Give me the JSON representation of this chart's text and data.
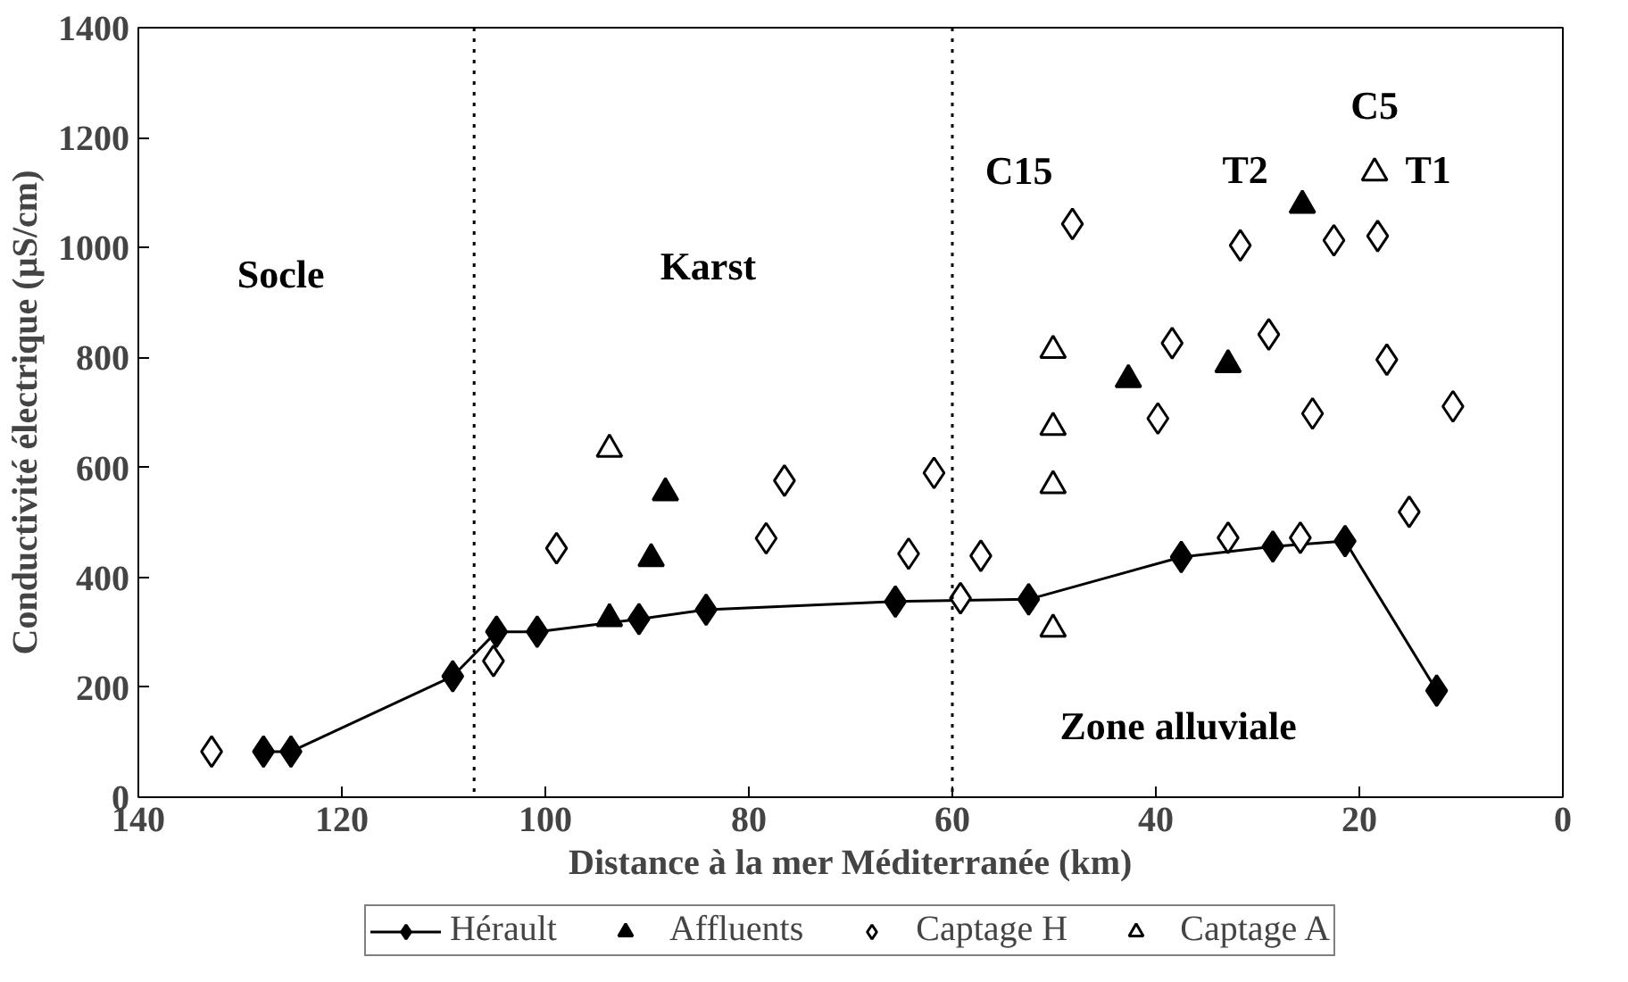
{
  "chart_data": {
    "type": "scatter",
    "xlabel": "Distance à la mer Méditerranée (km)",
    "ylabel": "Conductivité électrique (µS/cm)",
    "xlim": [
      140,
      0
    ],
    "xticks": [
      140,
      120,
      100,
      80,
      60,
      40,
      20,
      0
    ],
    "ylim": [
      0,
      1400
    ],
    "yticks": [
      0,
      200,
      400,
      600,
      800,
      1000,
      1200,
      1400
    ],
    "grid": false,
    "legend": "bottom",
    "ref_lines": [
      {
        "axis": "x",
        "value": 107,
        "line_style": "dotted",
        "color": "#000000"
      },
      {
        "axis": "x",
        "value": 60,
        "line_style": "dotted",
        "color": "#000000"
      }
    ],
    "annotations": [
      "Socle",
      "Karst",
      "Zone alluviale",
      {
        "text": "C15",
        "x": 48.2,
        "y": 1043
      },
      {
        "text": "T2",
        "x": 25.6,
        "y": 1077
      },
      {
        "text": "C5",
        "x": 18.5,
        "y": 1136
      },
      {
        "text": "T1",
        "x": 18.5,
        "y": 1136
      }
    ],
    "series": [
      {
        "name": "Hérault",
        "type": "line",
        "marker": "diamond",
        "color": "#000000",
        "x": [
          127.7,
          125.0,
          109.1,
          104.8,
          100.8,
          90.8,
          84.2,
          65.6,
          52.5,
          37.5,
          28.5,
          21.4,
          12.4
        ],
        "values": [
          83,
          83,
          220,
          301,
          301,
          324,
          341,
          356,
          360,
          437,
          456,
          466,
          194
        ]
      },
      {
        "name": "Affluents",
        "marker": "triangle",
        "color": "#000000",
        "x": [
          93.7,
          89.6,
          88.2,
          42.7,
          32.9,
          25.6
        ],
        "values": [
          325,
          434,
          554,
          760,
          787,
          1077
        ]
      },
      {
        "name": "Captage H",
        "marker": "diamond",
        "color": "#ffffff",
        "x": [
          132.8,
          105.1,
          98.9,
          78.3,
          76.5,
          64.3,
          61.8,
          59.2,
          57.2,
          48.2,
          39.8,
          38.4,
          32.9,
          31.7,
          28.9,
          25.8,
          24.6,
          22.5,
          18.2,
          17.3,
          15.1,
          10.8
        ],
        "values": [
          83,
          248,
          453,
          471,
          576,
          443,
          590,
          362,
          439,
          1043,
          689,
          826,
          472,
          1004,
          842,
          472,
          698,
          1013,
          1021,
          796,
          519,
          711
        ]
      },
      {
        "name": "Captage A",
        "marker": "triangle",
        "color": "#ffffff",
        "x": [
          93.7,
          50.1,
          50.1,
          50.1,
          50.1,
          18.5
        ],
        "values": [
          633,
          813,
          673,
          567,
          306,
          1136
        ]
      }
    ]
  }
}
